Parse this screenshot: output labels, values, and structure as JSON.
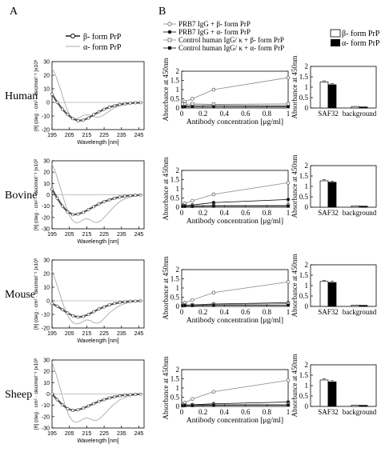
{
  "panel_labels": {
    "a": "A",
    "b": "B"
  },
  "species": [
    "Human",
    "Bovine",
    "Mouse",
    "Sheep"
  ],
  "cd_legend": {
    "beta": "β- form PrP",
    "alpha": "α- form PrP"
  },
  "elisa_legend": [
    "PRB7 IgG + β- form PrP",
    "PRB7 IgG + α- form PrP",
    "Control human IgG/ κ + β- form PrP",
    "Control human IgG/ κ + α- form PrP"
  ],
  "bar_legend": {
    "beta": "β- form PrP",
    "alpha": "α- form PrP"
  },
  "colors": {
    "beta_fill": "#ffffff",
    "alpha_fill": "#000000",
    "cd_beta": "#555555",
    "cd_alpha": "#aaaaaa"
  },
  "chart_data": [
    {
      "type": "line",
      "panel": "A",
      "chart": "cd-spectra",
      "ylabel": "[θ] (deg · cm² · decimol⁻¹ )x10³",
      "xlabel": "Wavelength [nm]",
      "xlim": [
        195,
        248
      ],
      "xticks": [
        "195",
        "205",
        "215",
        "225",
        "235",
        "245"
      ],
      "rows": [
        {
          "species": "Human",
          "ylim": [
            -20,
            30
          ],
          "yticks": [
            "30",
            "20",
            "10",
            "0",
            "-10",
            "-20"
          ],
          "series": [
            {
              "name": "β- form PrP",
              "x": [
                195,
                198,
                201,
                204,
                207,
                210,
                213,
                216,
                219,
                222,
                225,
                228,
                231,
                234,
                237,
                240,
                243,
                246
              ],
              "y": [
                6,
                0,
                -5,
                -9,
                -12,
                -13.5,
                -13,
                -11.5,
                -9,
                -7,
                -5,
                -3.5,
                -2.5,
                -1.5,
                -1,
                -0.5,
                -0.3,
                -0.2
              ]
            },
            {
              "name": "α- form PrP",
              "x": [
                195,
                197,
                199,
                201,
                203,
                205,
                207,
                209,
                211,
                213,
                215,
                217,
                219,
                221,
                223,
                225,
                228,
                231,
                234,
                237,
                240,
                243,
                246
              ],
              "y": [
                25,
                20,
                13,
                5,
                -3,
                -9,
                -12.5,
                -12,
                -11,
                -9.5,
                -9,
                -9.5,
                -10.5,
                -11,
                -10.5,
                -9,
                -6.5,
                -4,
                -2.5,
                -1.5,
                -0.8,
                -0.4,
                -0.2
              ]
            }
          ]
        },
        {
          "species": "Bovine",
          "ylim": [
            -30,
            30
          ],
          "yticks": [
            "30",
            "20",
            "10",
            "0",
            "-10",
            "-20",
            "-30"
          ],
          "series": [
            {
              "name": "β- form PrP",
              "x": [
                195,
                198,
                201,
                204,
                207,
                210,
                213,
                216,
                219,
                222,
                225,
                228,
                231,
                234,
                237,
                240,
                243,
                246
              ],
              "y": [
                5,
                -3,
                -10,
                -15,
                -17.5,
                -17,
                -15.5,
                -13,
                -10.5,
                -8,
                -6,
                -4.5,
                -3,
                -2,
                -1.2,
                -0.7,
                -0.4,
                -0.2
              ]
            },
            {
              "name": "α- form PrP",
              "x": [
                195,
                197,
                199,
                201,
                203,
                205,
                207,
                209,
                211,
                213,
                215,
                217,
                219,
                221,
                223,
                225,
                228,
                231,
                234,
                237,
                240,
                243,
                246
              ],
              "y": [
                27,
                20,
                10,
                0,
                -10,
                -18,
                -23,
                -25,
                -24,
                -22,
                -21,
                -22,
                -24,
                -24.5,
                -23,
                -20,
                -15,
                -10,
                -6,
                -3.5,
                -2,
                -1,
                -0.5
              ]
            }
          ]
        },
        {
          "species": "Mouse",
          "ylim": [
            -20,
            30
          ],
          "yticks": [
            "30",
            "20",
            "10",
            "0",
            "-10",
            "-20"
          ],
          "series": [
            {
              "name": "β- form PrP",
              "x": [
                195,
                198,
                201,
                204,
                207,
                210,
                213,
                216,
                219,
                222,
                225,
                228,
                231,
                234,
                237,
                240,
                243,
                246
              ],
              "y": [
                -2,
                -4,
                -6.5,
                -9,
                -11,
                -12,
                -11.5,
                -10,
                -8,
                -6,
                -4.5,
                -3,
                -2,
                -1.2,
                -0.8,
                -0.4,
                -0.2,
                -0.1
              ]
            },
            {
              "name": "α- form PrP",
              "x": [
                195,
                197,
                199,
                201,
                203,
                205,
                207,
                209,
                211,
                213,
                215,
                217,
                219,
                221,
                223,
                225,
                228,
                231,
                234,
                237,
                240,
                243,
                246
              ],
              "y": [
                22,
                15,
                7,
                -1,
                -8,
                -13,
                -16,
                -17,
                -16.5,
                -15,
                -14,
                -14.5,
                -16,
                -16.5,
                -15.5,
                -13,
                -9,
                -6,
                -3.5,
                -2,
                -1,
                -0.5,
                -0.2
              ]
            }
          ]
        },
        {
          "species": "Sheep",
          "ylim": [
            -30,
            30
          ],
          "yticks": [
            "30",
            "20",
            "10",
            "0",
            "-10",
            "-20",
            "-30"
          ],
          "series": [
            {
              "name": "β- form PrP",
              "x": [
                195,
                198,
                201,
                204,
                207,
                210,
                213,
                216,
                219,
                222,
                225,
                228,
                231,
                234,
                237,
                240,
                243,
                246
              ],
              "y": [
                0,
                -5,
                -9.5,
                -13,
                -14.5,
                -14,
                -12.5,
                -10.5,
                -8.5,
                -6.5,
                -5,
                -3.5,
                -2.5,
                -1.5,
                -1,
                -0.6,
                -0.3,
                -0.2
              ]
            },
            {
              "name": "α- form PrP",
              "x": [
                195,
                197,
                199,
                201,
                203,
                205,
                207,
                209,
                211,
                213,
                215,
                217,
                219,
                221,
                223,
                225,
                228,
                231,
                234,
                237,
                240,
                243,
                246
              ],
              "y": [
                28,
                19,
                9,
                -2,
                -12,
                -20,
                -24,
                -25,
                -24,
                -22,
                -21,
                -22,
                -23.5,
                -23,
                -21,
                -18,
                -13,
                -8.5,
                -5,
                -3,
                -1.8,
                -0.8,
                -0.4
              ]
            }
          ]
        }
      ]
    },
    {
      "type": "line",
      "panel": "B",
      "chart": "elisa-titration",
      "ylabel": "Absorbance at 450nm",
      "xlabel": "Antibody concentration [μg/ml]",
      "xlim": [
        0,
        1
      ],
      "ylim": [
        0,
        2
      ],
      "xticks": [
        "0",
        "0.2",
        "0.4",
        "0.6",
        "0.8",
        "1"
      ],
      "yticks": [
        "0",
        "0.5",
        "1",
        "1.5",
        "2"
      ],
      "x": [
        0.01,
        0.03,
        0.1,
        0.3,
        1
      ],
      "rows": [
        {
          "species": "Human",
          "series": [
            {
              "name": "PRB7 IgG + β- form PrP",
              "y": [
                0.2,
                0.35,
                0.5,
                1.0,
                1.65
              ]
            },
            {
              "name": "PRB7 IgG + α- form PrP",
              "y": [
                0.1,
                0.12,
                0.13,
                0.14,
                0.12
              ]
            },
            {
              "name": "Control human IgG/ κ + β- form PrP",
              "y": [
                0.22,
                0.2,
                0.22,
                0.2,
                0.22
              ]
            },
            {
              "name": "Control human IgG/ κ + α- form PrP",
              "y": [
                0.06,
                0.07,
                0.07,
                0.07,
                0.07
              ]
            }
          ]
        },
        {
          "species": "Bovine",
          "series": [
            {
              "name": "PRB7 IgG + β- form PrP",
              "y": [
                0.12,
                0.2,
                0.35,
                0.7,
                1.33
              ]
            },
            {
              "name": "PRB7 IgG + α- form PrP",
              "y": [
                0.07,
                0.08,
                0.12,
                0.25,
                0.42
              ]
            },
            {
              "name": "Control human IgG/ κ + β- form PrP",
              "y": [
                0.06,
                0.07,
                0.08,
                0.09,
                0.1
              ]
            },
            {
              "name": "Control human IgG/ κ + α- form PrP",
              "y": [
                0.05,
                0.05,
                0.05,
                0.06,
                0.06
              ]
            }
          ]
        },
        {
          "species": "Mouse",
          "series": [
            {
              "name": "PRB7 IgG + β- form PrP",
              "y": [
                0.12,
                0.2,
                0.35,
                0.75,
                1.33
              ]
            },
            {
              "name": "PRB7 IgG + α- form PrP",
              "y": [
                0.06,
                0.07,
                0.08,
                0.13,
                0.2
              ]
            },
            {
              "name": "Control human IgG/ κ + β- form PrP",
              "y": [
                0.05,
                0.06,
                0.07,
                0.1,
                0.15
              ]
            },
            {
              "name": "Control human IgG/ κ + α- form PrP",
              "y": [
                0.04,
                0.05,
                0.05,
                0.06,
                0.07
              ]
            }
          ]
        },
        {
          "species": "Sheep",
          "series": [
            {
              "name": "PRB7 IgG + β- form PrP",
              "y": [
                0.12,
                0.2,
                0.4,
                0.8,
                1.42
              ]
            },
            {
              "name": "PRB7 IgG + α- form PrP",
              "y": [
                0.06,
                0.07,
                0.09,
                0.14,
                0.24
              ]
            },
            {
              "name": "Control human IgG/ κ + β- form PrP",
              "y": [
                0.05,
                0.06,
                0.07,
                0.09,
                0.12
              ]
            },
            {
              "name": "Control human IgG/ κ + α- form PrP",
              "y": [
                0.04,
                0.05,
                0.05,
                0.06,
                0.07
              ]
            }
          ]
        }
      ]
    },
    {
      "type": "bar",
      "panel": "B",
      "chart": "saf32-control",
      "ylabel": "Absorbance at 450nm",
      "categories": [
        "SAF32",
        "background"
      ],
      "ylim": [
        0,
        2
      ],
      "yticks": [
        "0",
        "0.5",
        "1",
        "1.5",
        "2"
      ],
      "rows": [
        {
          "species": "Human",
          "series": [
            {
              "name": "β- form PrP",
              "values": [
                1.25,
                0.07
              ]
            },
            {
              "name": "α- form PrP",
              "values": [
                1.12,
                0.05
              ]
            }
          ]
        },
        {
          "species": "Bovine",
          "series": [
            {
              "name": "β- form PrP",
              "values": [
                1.27,
                0.06
              ]
            },
            {
              "name": "α- form PrP",
              "values": [
                1.2,
                0.05
              ]
            }
          ]
        },
        {
          "species": "Mouse",
          "series": [
            {
              "name": "β- form PrP",
              "values": [
                1.2,
                0.06
              ]
            },
            {
              "name": "α- form PrP",
              "values": [
                1.15,
                0.05
              ]
            }
          ]
        },
        {
          "species": "Sheep",
          "series": [
            {
              "name": "β- form PrP",
              "values": [
                1.27,
                0.06
              ]
            },
            {
              "name": "α- form PrP",
              "values": [
                1.18,
                0.05
              ]
            }
          ]
        }
      ]
    }
  ]
}
